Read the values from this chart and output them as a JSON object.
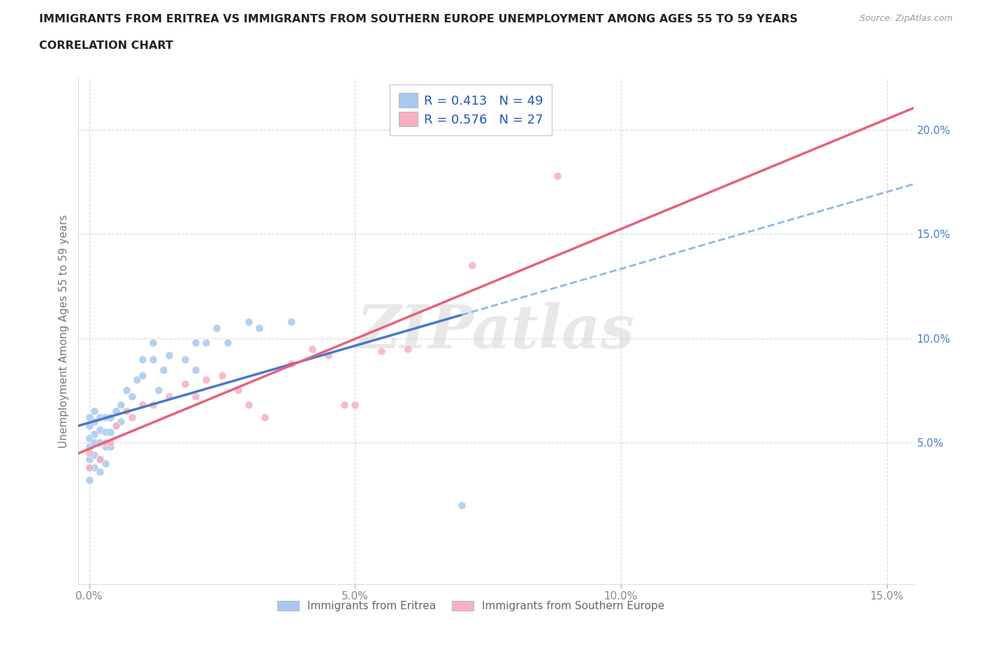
{
  "title_line1": "IMMIGRANTS FROM ERITREA VS IMMIGRANTS FROM SOUTHERN EUROPE UNEMPLOYMENT AMONG AGES 55 TO 59 YEARS",
  "title_line2": "CORRELATION CHART",
  "source": "Source: ZipAtlas.com",
  "ylabel": "Unemployment Among Ages 55 to 59 years",
  "xlim": [
    -0.002,
    0.155
  ],
  "ylim": [
    -0.018,
    0.225
  ],
  "xtick_positions": [
    0.0,
    0.05,
    0.1,
    0.15
  ],
  "xtick_labels": [
    "0.0%",
    "5.0%",
    "10.0%",
    "15.0%"
  ],
  "ytick_positions": [
    0.05,
    0.1,
    0.15,
    0.2
  ],
  "ytick_labels": [
    "5.0%",
    "10.0%",
    "15.0%",
    "20.0%"
  ],
  "R_eritrea": 0.413,
  "N_eritrea": 49,
  "R_southern": 0.576,
  "N_southern": 27,
  "color_eritrea": "#a8c8f0",
  "color_southern": "#f8b0c0",
  "line_color_eritrea_solid": "#4878c8",
  "line_color_eritrea_dash": "#90b8e8",
  "line_color_southern": "#e8607a",
  "watermark": "ZIPatlas",
  "legend_label_eritrea": "Immigrants from Eritrea",
  "legend_label_southern": "Immigrants from Southern Europe",
  "eritrea_x": [
    0.0,
    0.0,
    0.0,
    0.0,
    0.0,
    0.0,
    0.0,
    0.001,
    0.001,
    0.001,
    0.001,
    0.001,
    0.001,
    0.002,
    0.002,
    0.002,
    0.002,
    0.002,
    0.003,
    0.003,
    0.003,
    0.003,
    0.004,
    0.004,
    0.004,
    0.005,
    0.005,
    0.006,
    0.006,
    0.007,
    0.008,
    0.009,
    0.01,
    0.01,
    0.012,
    0.012,
    0.013,
    0.014,
    0.015,
    0.018,
    0.02,
    0.02,
    0.022,
    0.024,
    0.026,
    0.03,
    0.032,
    0.038,
    0.07
  ],
  "eritrea_y": [
    0.032,
    0.038,
    0.042,
    0.048,
    0.052,
    0.058,
    0.062,
    0.038,
    0.044,
    0.05,
    0.054,
    0.06,
    0.065,
    0.036,
    0.042,
    0.05,
    0.056,
    0.062,
    0.04,
    0.048,
    0.055,
    0.062,
    0.048,
    0.055,
    0.062,
    0.058,
    0.065,
    0.06,
    0.068,
    0.075,
    0.072,
    0.08,
    0.082,
    0.09,
    0.09,
    0.098,
    0.075,
    0.085,
    0.092,
    0.09,
    0.085,
    0.098,
    0.098,
    0.105,
    0.098,
    0.108,
    0.105,
    0.108,
    0.02
  ],
  "southern_x": [
    0.0,
    0.0,
    0.002,
    0.003,
    0.004,
    0.005,
    0.007,
    0.008,
    0.01,
    0.012,
    0.015,
    0.018,
    0.02,
    0.022,
    0.025,
    0.028,
    0.03,
    0.033,
    0.038,
    0.042,
    0.045,
    0.048,
    0.05,
    0.055,
    0.06,
    0.072,
    0.088
  ],
  "southern_y": [
    0.038,
    0.045,
    0.042,
    0.05,
    0.05,
    0.058,
    0.065,
    0.062,
    0.068,
    0.068,
    0.072,
    0.078,
    0.072,
    0.08,
    0.082,
    0.075,
    0.068,
    0.062,
    0.088,
    0.095,
    0.092,
    0.068,
    0.068,
    0.094,
    0.095,
    0.135,
    0.178
  ]
}
